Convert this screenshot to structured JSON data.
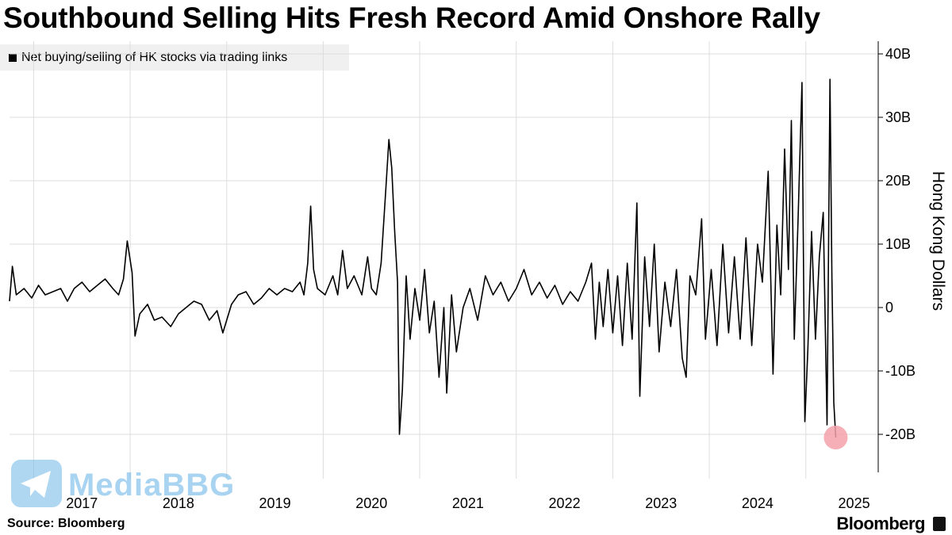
{
  "title": "Southbound Selling Hits Fresh Record Amid Onshore Rally",
  "source": "Source: Bloomberg",
  "brand": "Bloomberg",
  "watermark": "MediaBBG",
  "chart_data": {
    "type": "line",
    "title": "Southbound Selling Hits Fresh Record Amid Onshore Rally",
    "ylabel": "Hong Kong Dollars",
    "xlabel": "",
    "legend": {
      "placement": "top-left",
      "entries": [
        "Net buying/selling of HK stocks via trading links"
      ]
    },
    "grid": true,
    "y_axis_side": "right",
    "ylim": [
      -26,
      42
    ],
    "xlim": [
      2016.75,
      2025.75
    ],
    "y_ticks": [
      {
        "value": 40,
        "label": "40B"
      },
      {
        "value": 30,
        "label": "30B"
      },
      {
        "value": 20,
        "label": "20B"
      },
      {
        "value": 10,
        "label": "10B"
      },
      {
        "value": 0,
        "label": "0"
      },
      {
        "value": -10,
        "label": "-10B"
      },
      {
        "value": -20,
        "label": "-20B"
      }
    ],
    "x_ticks": [
      {
        "value": 2017.0,
        "label": "2017"
      },
      {
        "value": 2018.0,
        "label": "2018"
      },
      {
        "value": 2019.0,
        "label": "2019"
      },
      {
        "value": 2020.0,
        "label": "2020"
      },
      {
        "value": 2021.0,
        "label": "2021"
      },
      {
        "value": 2022.0,
        "label": "2022"
      },
      {
        "value": 2023.0,
        "label": "2023"
      },
      {
        "value": 2024.0,
        "label": "2024"
      },
      {
        "value": 2025.0,
        "label": "2025"
      }
    ],
    "line_color": "#000000",
    "highlight": {
      "x": 2025.31,
      "y": -20.5,
      "color": "#f4a0aa"
    },
    "series": [
      {
        "points": [
          [
            2016.75,
            1.0
          ],
          [
            2016.78,
            6.5
          ],
          [
            2016.82,
            2.0
          ],
          [
            2016.9,
            3.0
          ],
          [
            2016.98,
            1.5
          ],
          [
            2017.05,
            3.5
          ],
          [
            2017.12,
            2.0
          ],
          [
            2017.2,
            2.5
          ],
          [
            2017.28,
            3.0
          ],
          [
            2017.35,
            1.0
          ],
          [
            2017.42,
            3.0
          ],
          [
            2017.5,
            4.0
          ],
          [
            2017.58,
            2.5
          ],
          [
            2017.66,
            3.5
          ],
          [
            2017.74,
            4.5
          ],
          [
            2017.82,
            3.0
          ],
          [
            2017.88,
            2.0
          ],
          [
            2017.93,
            4.5
          ],
          [
            2017.97,
            10.5
          ],
          [
            2018.02,
            5.5
          ],
          [
            2018.05,
            -4.5
          ],
          [
            2018.1,
            -1.0
          ],
          [
            2018.18,
            0.5
          ],
          [
            2018.25,
            -2.0
          ],
          [
            2018.33,
            -1.5
          ],
          [
            2018.42,
            -3.0
          ],
          [
            2018.5,
            -1.0
          ],
          [
            2018.58,
            0.0
          ],
          [
            2018.66,
            1.0
          ],
          [
            2018.74,
            0.5
          ],
          [
            2018.82,
            -2.0
          ],
          [
            2018.9,
            -0.5
          ],
          [
            2018.96,
            -4.0
          ],
          [
            2019.05,
            0.5
          ],
          [
            2019.12,
            2.0
          ],
          [
            2019.2,
            2.5
          ],
          [
            2019.28,
            0.5
          ],
          [
            2019.36,
            1.5
          ],
          [
            2019.44,
            3.0
          ],
          [
            2019.52,
            2.0
          ],
          [
            2019.6,
            3.0
          ],
          [
            2019.68,
            2.5
          ],
          [
            2019.76,
            4.0
          ],
          [
            2019.8,
            2.0
          ],
          [
            2019.84,
            7.0
          ],
          [
            2019.87,
            16.0
          ],
          [
            2019.9,
            6.0
          ],
          [
            2019.94,
            3.0
          ],
          [
            2020.02,
            2.0
          ],
          [
            2020.1,
            5.0
          ],
          [
            2020.15,
            2.0
          ],
          [
            2020.2,
            9.0
          ],
          [
            2020.25,
            3.0
          ],
          [
            2020.32,
            5.0
          ],
          [
            2020.4,
            2.0
          ],
          [
            2020.46,
            8.0
          ],
          [
            2020.5,
            3.0
          ],
          [
            2020.55,
            2.0
          ],
          [
            2020.6,
            7.0
          ],
          [
            2020.65,
            19.0
          ],
          [
            2020.68,
            26.5
          ],
          [
            2020.71,
            22.0
          ],
          [
            2020.74,
            12.0
          ],
          [
            2020.77,
            4.0
          ],
          [
            2020.79,
            -20.0
          ],
          [
            2020.82,
            -13.0
          ],
          [
            2020.86,
            5.0
          ],
          [
            2020.9,
            -5.0
          ],
          [
            2020.95,
            3.0
          ],
          [
            2021.0,
            -2.0
          ],
          [
            2021.05,
            6.0
          ],
          [
            2021.1,
            -4.0
          ],
          [
            2021.15,
            1.0
          ],
          [
            2021.2,
            -11.0
          ],
          [
            2021.25,
            0.0
          ],
          [
            2021.28,
            -13.5
          ],
          [
            2021.33,
            2.0
          ],
          [
            2021.38,
            -7.0
          ],
          [
            2021.45,
            0.0
          ],
          [
            2021.52,
            3.0
          ],
          [
            2021.6,
            -2.0
          ],
          [
            2021.68,
            5.0
          ],
          [
            2021.76,
            2.0
          ],
          [
            2021.84,
            4.0
          ],
          [
            2021.92,
            1.0
          ],
          [
            2022.0,
            3.0
          ],
          [
            2022.08,
            6.0
          ],
          [
            2022.16,
            2.0
          ],
          [
            2022.24,
            4.0
          ],
          [
            2022.32,
            1.5
          ],
          [
            2022.4,
            3.5
          ],
          [
            2022.48,
            0.5
          ],
          [
            2022.56,
            2.5
          ],
          [
            2022.64,
            1.0
          ],
          [
            2022.72,
            4.0
          ],
          [
            2022.78,
            7.0
          ],
          [
            2022.82,
            -5.0
          ],
          [
            2022.86,
            4.0
          ],
          [
            2022.9,
            -3.0
          ],
          [
            2022.95,
            6.0
          ],
          [
            2023.0,
            -4.0
          ],
          [
            2023.05,
            5.0
          ],
          [
            2023.1,
            -6.0
          ],
          [
            2023.15,
            7.0
          ],
          [
            2023.2,
            -5.0
          ],
          [
            2023.25,
            16.5
          ],
          [
            2023.28,
            -14.0
          ],
          [
            2023.33,
            8.0
          ],
          [
            2023.38,
            -3.0
          ],
          [
            2023.43,
            10.0
          ],
          [
            2023.48,
            -7.0
          ],
          [
            2023.54,
            4.0
          ],
          [
            2023.6,
            -3.0
          ],
          [
            2023.66,
            6.0
          ],
          [
            2023.72,
            -8.0
          ],
          [
            2023.76,
            -11.0
          ],
          [
            2023.8,
            5.0
          ],
          [
            2023.86,
            2.0
          ],
          [
            2023.92,
            14.0
          ],
          [
            2023.96,
            -5.0
          ],
          [
            2024.02,
            6.0
          ],
          [
            2024.08,
            -6.0
          ],
          [
            2024.14,
            10.0
          ],
          [
            2024.2,
            -4.0
          ],
          [
            2024.26,
            8.0
          ],
          [
            2024.32,
            -5.0
          ],
          [
            2024.38,
            11.0
          ],
          [
            2024.44,
            -6.0
          ],
          [
            2024.5,
            10.0
          ],
          [
            2024.55,
            4.0
          ],
          [
            2024.61,
            21.5
          ],
          [
            2024.66,
            -10.5
          ],
          [
            2024.7,
            13.0
          ],
          [
            2024.74,
            2.0
          ],
          [
            2024.78,
            25.0
          ],
          [
            2024.82,
            6.0
          ],
          [
            2024.85,
            29.5
          ],
          [
            2024.88,
            -5.0
          ],
          [
            2024.92,
            14.0
          ],
          [
            2024.96,
            35.5
          ],
          [
            2024.99,
            -18.0
          ],
          [
            2025.02,
            -7.0
          ],
          [
            2025.06,
            12.0
          ],
          [
            2025.1,
            -5.0
          ],
          [
            2025.14,
            8.0
          ],
          [
            2025.18,
            15.0
          ],
          [
            2025.22,
            -18.5
          ],
          [
            2025.25,
            36.0
          ],
          [
            2025.27,
            5.0
          ],
          [
            2025.29,
            -15.0
          ],
          [
            2025.31,
            -20.5
          ]
        ],
        "values_note_removed": true
      }
    ]
  }
}
